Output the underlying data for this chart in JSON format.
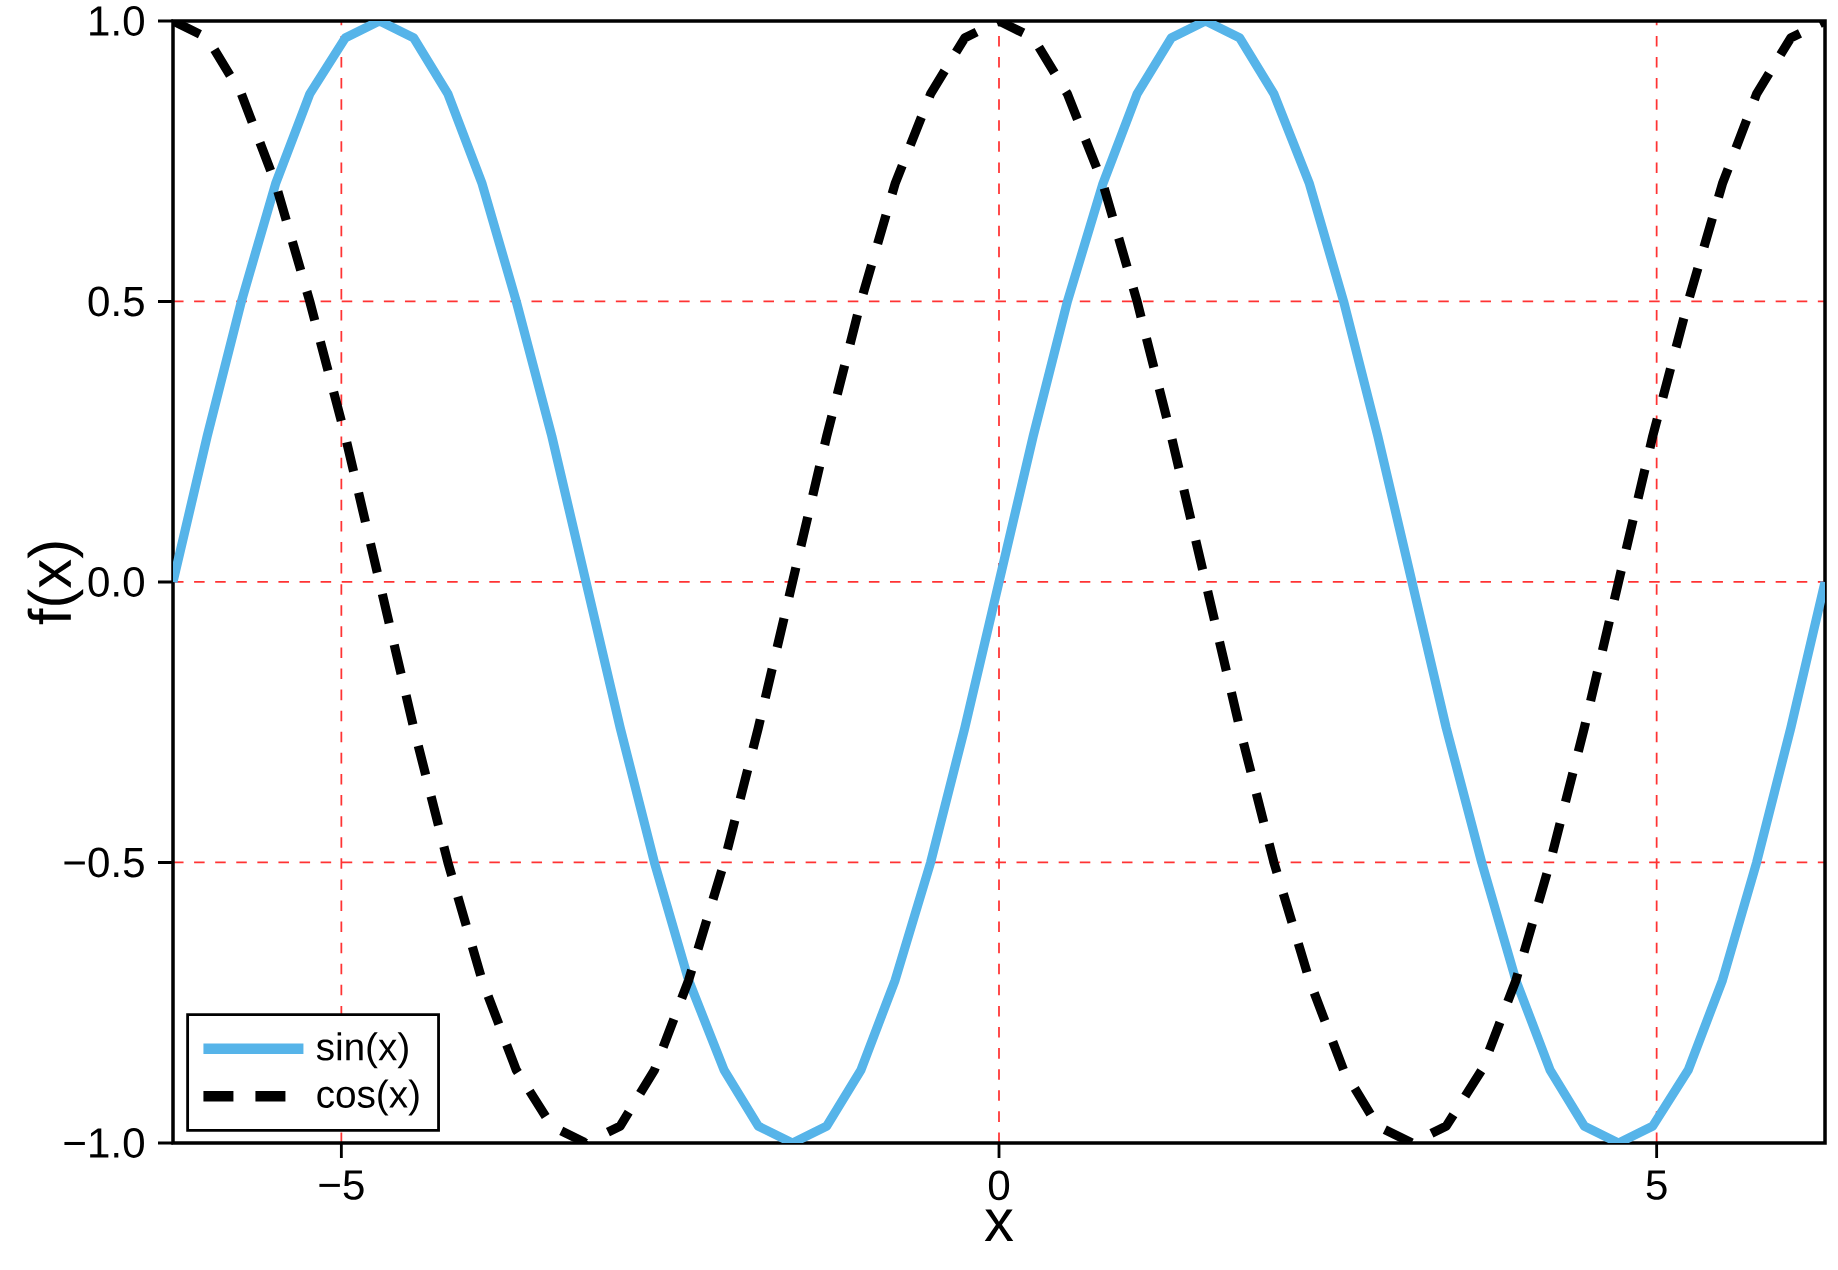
{
  "chart_data": {
    "type": "line",
    "xlabel": "x",
    "ylabel": "f(x)",
    "xlim": [
      -6.28,
      6.28
    ],
    "ylim": [
      -1,
      1
    ],
    "xticks": [
      {
        "value": -5,
        "label": "−5"
      },
      0,
      5
    ],
    "yticks": [
      {
        "value": -1,
        "label": "−1.0"
      },
      {
        "value": -0.5,
        "label": "−0.5"
      },
      {
        "value": 0,
        "label": "0.0"
      },
      {
        "value": 0.5,
        "label": "0.5"
      },
      {
        "value": 1,
        "label": "1.0"
      }
    ],
    "grid": true,
    "legend": "bottom left",
    "x": [
      -6.28,
      -6.02,
      -5.76,
      -5.5,
      -5.24,
      -4.97,
      -4.71,
      -4.45,
      -4.19,
      -3.93,
      -3.67,
      -3.4,
      -3.14,
      -2.88,
      -2.62,
      -2.36,
      -2.09,
      -1.83,
      -1.57,
      -1.31,
      -1.05,
      -0.79,
      -0.52,
      -0.26,
      0,
      0.26,
      0.52,
      0.79,
      1.05,
      1.31,
      1.57,
      1.83,
      2.09,
      2.36,
      2.62,
      2.88,
      3.14,
      3.4,
      3.67,
      3.93,
      4.19,
      4.45,
      4.71,
      4.97,
      5.24,
      5.5,
      5.76,
      6.02,
      6.28
    ],
    "series": [
      {
        "name": "sin(x)",
        "color": "#56b4e9",
        "line_style": "solid",
        "values": [
          0,
          0.26,
          0.5,
          0.71,
          0.87,
          0.97,
          1,
          0.97,
          0.87,
          0.71,
          0.5,
          0.26,
          0,
          -0.26,
          -0.5,
          -0.71,
          -0.87,
          -0.97,
          -1,
          -0.97,
          -0.87,
          -0.71,
          -0.5,
          -0.26,
          0,
          0.26,
          0.5,
          0.71,
          0.87,
          0.97,
          1,
          0.97,
          0.87,
          0.71,
          0.5,
          0.26,
          0,
          -0.26,
          -0.5,
          -0.71,
          -0.87,
          -0.97,
          -1,
          -0.97,
          -0.87,
          -0.71,
          -0.5,
          -0.26,
          0
        ]
      },
      {
        "name": "cos(x)",
        "color": "#000000",
        "line_style": "dashed",
        "values": [
          1,
          0.97,
          0.87,
          0.71,
          0.5,
          0.26,
          0,
          -0.26,
          -0.5,
          -0.71,
          -0.87,
          -0.97,
          -1,
          -0.97,
          -0.87,
          -0.71,
          -0.5,
          -0.26,
          0,
          0.26,
          0.5,
          0.71,
          0.87,
          0.97,
          1,
          0.97,
          0.87,
          0.71,
          0.5,
          0.26,
          0,
          -0.26,
          -0.5,
          -0.71,
          -0.87,
          -0.97,
          -1,
          -0.97,
          -0.87,
          -0.71,
          -0.5,
          -0.26,
          0,
          0.26,
          0.5,
          0.71,
          0.87,
          0.97,
          1
        ]
      }
    ]
  }
}
